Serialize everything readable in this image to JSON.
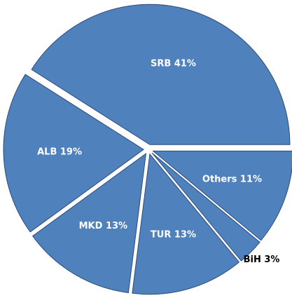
{
  "chart_data": {
    "type": "pie",
    "values": [
      41,
      19,
      13,
      13,
      3,
      11
    ],
    "value_labels": [
      "SRB 41%",
      "ALB 19%",
      "MKD 13%",
      "TUR 13%",
      "BiH 3%",
      "Others 11%"
    ],
    "color": "#4f81bd"
  }
}
